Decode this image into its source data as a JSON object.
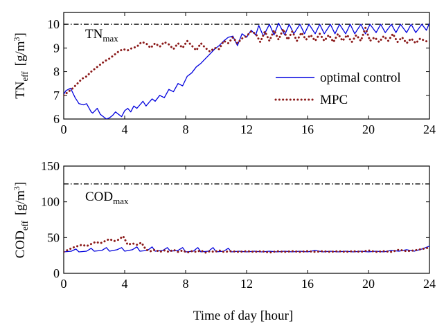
{
  "chart_data": [
    {
      "type": "line",
      "ylabel_main": "TN",
      "ylabel_sub": "eff",
      "ylabel_unit_pre": "[g/m",
      "ylabel_unit_sup": "3",
      "ylabel_unit_post": "]",
      "xlim": [
        0,
        24
      ],
      "ylim": [
        6,
        10.5
      ],
      "xticks": [
        0,
        4,
        8,
        12,
        16,
        20,
        24
      ],
      "yticks": [
        6,
        7,
        8,
        9,
        10
      ],
      "limit_value": 10,
      "limit_label_main": "TN",
      "limit_label_sub": "max",
      "legend_position": "right-middle",
      "series": [
        {
          "name": "optimal control",
          "color": "#0000dd",
          "style": "solid",
          "x": [
            0,
            0.15,
            0.3,
            0.45,
            0.6,
            0.75,
            0.9,
            1.0,
            1.3,
            1.5,
            1.8,
            1.9,
            2.2,
            2.4,
            2.6,
            2.8,
            3.0,
            3.2,
            3.4,
            3.6,
            3.8,
            4.0,
            4.2,
            4.4,
            4.6,
            4.8,
            5.0,
            5.2,
            5.4,
            5.6,
            5.8,
            6.0,
            6.3,
            6.6,
            6.9,
            7.2,
            7.5,
            7.8,
            8.1,
            8.4,
            8.7,
            9.0,
            9.3,
            9.6,
            9.9,
            10.2,
            10.5,
            10.8,
            11.1,
            11.4,
            11.7,
            12.0,
            12.3,
            12.6,
            12.8,
            13.1,
            13.5,
            13.8,
            14.1,
            14.5,
            14.8,
            15.1,
            15.5,
            15.8,
            16.1,
            16.5,
            16.8,
            17.1,
            17.5,
            17.8,
            18.1,
            18.5,
            18.8,
            19.1,
            19.5,
            19.8,
            20.1,
            20.5,
            20.8,
            21.1,
            21.5,
            21.8,
            22.1,
            22.5,
            22.8,
            23.1,
            23.5,
            23.8,
            24.0
          ],
          "y": [
            7.05,
            7.2,
            7.25,
            7.3,
            7.1,
            6.9,
            6.75,
            6.65,
            6.6,
            6.65,
            6.3,
            6.25,
            6.45,
            6.2,
            6.1,
            6.0,
            6.05,
            6.15,
            6.3,
            6.2,
            6.1,
            6.35,
            6.45,
            6.3,
            6.55,
            6.45,
            6.6,
            6.75,
            6.55,
            6.7,
            6.85,
            6.75,
            7.0,
            6.9,
            7.25,
            7.15,
            7.5,
            7.4,
            7.8,
            7.95,
            8.2,
            8.35,
            8.55,
            8.75,
            8.95,
            9.1,
            9.3,
            9.45,
            9.5,
            9.1,
            9.6,
            9.45,
            9.75,
            9.55,
            9.95,
            9.5,
            10.0,
            9.55,
            10.05,
            9.55,
            10.0,
            9.6,
            10.0,
            9.6,
            10.0,
            9.6,
            10.0,
            9.6,
            10.0,
            9.6,
            10.0,
            9.6,
            10.0,
            9.6,
            10.0,
            9.6,
            10.0,
            9.65,
            10.0,
            9.65,
            10.0,
            9.65,
            10.0,
            9.65,
            10.0,
            9.65,
            10.0,
            9.75,
            10.05
          ]
        },
        {
          "name": "MPC",
          "color": "#8b1a1a",
          "style": "dotted",
          "x": [
            0,
            0.3,
            0.6,
            0.9,
            1.2,
            1.5,
            1.8,
            2.1,
            2.4,
            2.7,
            3.0,
            3.3,
            3.6,
            3.9,
            4.2,
            4.5,
            4.8,
            5.1,
            5.4,
            5.7,
            6.0,
            6.3,
            6.6,
            6.9,
            7.2,
            7.5,
            7.8,
            8.1,
            8.4,
            8.7,
            9.0,
            9.3,
            9.6,
            9.9,
            10.2,
            10.5,
            10.8,
            11.1,
            11.4,
            11.7,
            12.0,
            12.3,
            12.6,
            12.9,
            13.2,
            13.5,
            13.8,
            14.1,
            14.4,
            14.7,
            15.0,
            15.3,
            15.6,
            15.9,
            16.2,
            16.5,
            16.8,
            17.1,
            17.4,
            17.7,
            18.0,
            18.3,
            18.6,
            18.9,
            19.2,
            19.5,
            19.8,
            20.1,
            20.4,
            20.7,
            21.0,
            21.3,
            21.6,
            21.9,
            22.2,
            22.5,
            22.8,
            23.1,
            23.4,
            23.7,
            24.0
          ],
          "y": [
            7.0,
            7.15,
            7.3,
            7.5,
            7.7,
            7.8,
            8.0,
            8.15,
            8.3,
            8.45,
            8.55,
            8.7,
            8.85,
            8.95,
            8.9,
            9.0,
            9.05,
            9.25,
            9.2,
            9.0,
            9.2,
            9.05,
            9.25,
            9.15,
            8.95,
            9.2,
            9.0,
            9.3,
            9.1,
            8.9,
            9.2,
            9.0,
            8.85,
            9.0,
            8.95,
            9.3,
            9.2,
            9.45,
            9.2,
            9.4,
            9.5,
            9.7,
            9.6,
            9.25,
            9.7,
            9.3,
            9.75,
            9.35,
            9.8,
            9.35,
            9.7,
            9.3,
            9.65,
            9.35,
            9.55,
            9.3,
            9.6,
            9.3,
            9.55,
            9.25,
            9.6,
            9.3,
            9.55,
            9.25,
            9.55,
            9.3,
            9.85,
            9.3,
            9.45,
            9.25,
            9.5,
            9.3,
            9.6,
            9.25,
            9.45,
            9.2,
            9.4,
            9.2,
            9.4,
            9.3,
            9.25
          ]
        }
      ]
    },
    {
      "type": "line",
      "ylabel_main": "COD",
      "ylabel_sub": "eff",
      "ylabel_unit_pre": "[g/m",
      "ylabel_unit_sup": "3",
      "ylabel_unit_post": "]",
      "xlabel": "Time of day [hour]",
      "xlim": [
        0,
        24
      ],
      "ylim": [
        0,
        150
      ],
      "xticks": [
        0,
        4,
        8,
        12,
        16,
        20,
        24
      ],
      "yticks": [
        0,
        50,
        100,
        150
      ],
      "limit_value": 125,
      "limit_label_main": "COD",
      "limit_label_sub": "max",
      "series": [
        {
          "name": "optimal control",
          "color": "#0000dd",
          "style": "solid",
          "x": [
            0,
            0.5,
            0.8,
            1.0,
            1.5,
            1.8,
            2.0,
            2.5,
            2.8,
            3.0,
            3.5,
            3.8,
            4.0,
            4.5,
            4.8,
            5.0,
            5.5,
            5.8,
            6.0,
            6.5,
            6.8,
            7.0,
            7.5,
            7.8,
            8.0,
            8.5,
            8.8,
            9.0,
            9.5,
            9.8,
            10.0,
            10.5,
            10.8,
            11.0,
            11.5,
            12.0,
            12.5,
            13.0,
            13.5,
            14.0,
            14.5,
            15.0,
            15.5,
            16.0,
            16.5,
            17.0,
            17.5,
            18.0,
            18.5,
            19.0,
            19.5,
            20.0,
            20.5,
            21.0,
            21.5,
            22.0,
            22.5,
            23.0,
            23.5,
            24.0
          ],
          "y": [
            30,
            31,
            34,
            30,
            31,
            35,
            31,
            32,
            36,
            31,
            33,
            36,
            31,
            33,
            37,
            31,
            32,
            37,
            31,
            32,
            36,
            31,
            32,
            36,
            30,
            31,
            36,
            30,
            31,
            36,
            30,
            31,
            35,
            30,
            31,
            30,
            31,
            30,
            31,
            30,
            31,
            30,
            31,
            30,
            32,
            30,
            31,
            30,
            31,
            30,
            31,
            30,
            31,
            30,
            32,
            31,
            33,
            31,
            34,
            38
          ]
        },
        {
          "name": "MPC",
          "color": "#8b1a1a",
          "style": "dotted",
          "x": [
            0,
            0.3,
            0.6,
            0.9,
            1.2,
            1.5,
            1.8,
            2.1,
            2.4,
            2.7,
            3.0,
            3.3,
            3.6,
            3.9,
            4.2,
            4.5,
            4.8,
            5.1,
            5.4,
            5.7,
            6.0,
            6.3,
            6.6,
            6.9,
            7.2,
            7.5,
            7.8,
            8.1,
            8.4,
            8.7,
            9.0,
            9.3,
            9.6,
            9.9,
            10.2,
            10.5,
            11.0,
            11.5,
            12.0,
            12.5,
            13.0,
            13.5,
            14.0,
            14.5,
            15.0,
            15.5,
            16.0,
            16.5,
            17.0,
            17.5,
            18.0,
            18.5,
            19.0,
            19.5,
            20.0,
            20.5,
            21.0,
            21.5,
            22.0,
            22.5,
            23.0,
            23.5,
            24.0
          ],
          "y": [
            30,
            33,
            36,
            38,
            40,
            38,
            41,
            44,
            42,
            45,
            48,
            45,
            47,
            52,
            40,
            42,
            40,
            43,
            33,
            31,
            33,
            30,
            32,
            30,
            33,
            30,
            32,
            29,
            31,
            30,
            32,
            29,
            31,
            30,
            32,
            30,
            31,
            30,
            31,
            30,
            31,
            29,
            31,
            30,
            31,
            30,
            31,
            30,
            31,
            30,
            31,
            30,
            31,
            30,
            32,
            30,
            31,
            30,
            33,
            31,
            32,
            34,
            36
          ]
        }
      ]
    }
  ]
}
